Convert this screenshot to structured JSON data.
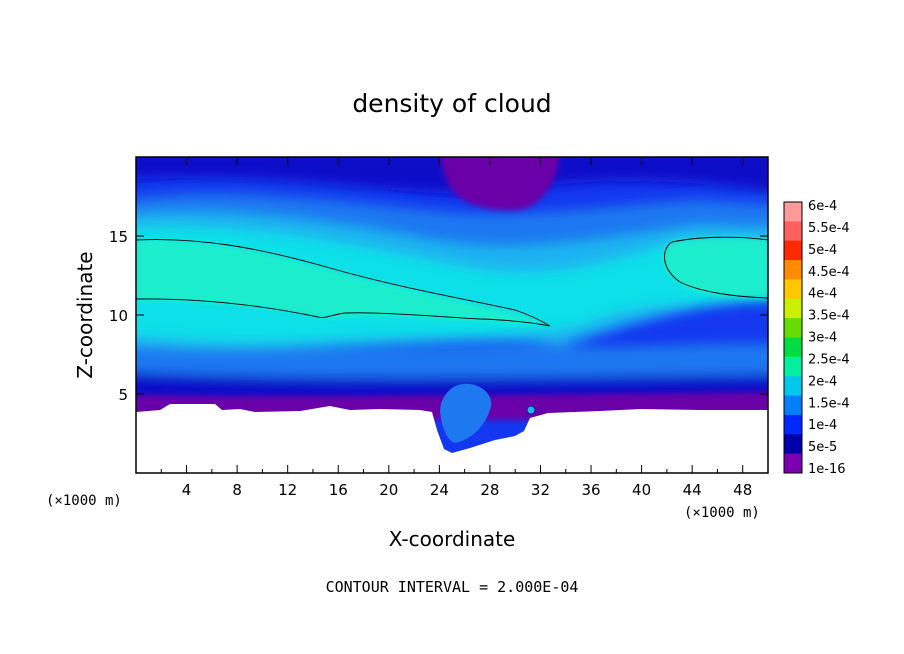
{
  "chart_data": {
    "type": "heatmap",
    "title": "density of cloud",
    "xlabel": "X-coordinate",
    "ylabel": "Z-coordinate",
    "x_unit": "(×1000 m)",
    "y_unit": "(×1000 m)",
    "xlim": [
      0,
      50
    ],
    "ylim": [
      0,
      20
    ],
    "x_ticks": [
      4,
      8,
      12,
      16,
      20,
      24,
      28,
      32,
      36,
      40,
      44,
      48
    ],
    "y_ticks": [
      5,
      10,
      15
    ],
    "contour_interval": "CONTOUR INTERVAL = 2.000E-04",
    "colorbar": {
      "labels": [
        "6e-4",
        "5.5e-4",
        "5e-4",
        "4.5e-4",
        "4e-4",
        "3.5e-4",
        "3e-4",
        "2.5e-4",
        "2e-4",
        "1.5e-4",
        "1e-4",
        "5e-5",
        "1e-16"
      ],
      "values": [
        0.0006,
        0.00055,
        0.0005,
        0.00045,
        0.0004,
        0.00035,
        0.0003,
        0.00025,
        0.0002,
        0.00015,
        0.0001,
        5e-05,
        1e-16
      ],
      "colors": [
        "#ff9a9a",
        "#ff6060",
        "#ff2a00",
        "#ff8c00",
        "#ffc800",
        "#c8f000",
        "#66dd00",
        "#00dd44",
        "#00f0a0",
        "#00c8e8",
        "#0080ff",
        "#0028ff",
        "#0000aa",
        "#7a00b0"
      ]
    },
    "field_features": {
      "colors": {
        "deep": "#6a00a8",
        "dark_blue": "#0a0ac8",
        "blue": "#1438f0",
        "mid_blue": "#1e78f0",
        "light_blue": "#1eb4f0",
        "cyan": "#10e0e8",
        "aqua": "#20f0c8",
        "terrain": "#ffffff"
      }
    }
  }
}
